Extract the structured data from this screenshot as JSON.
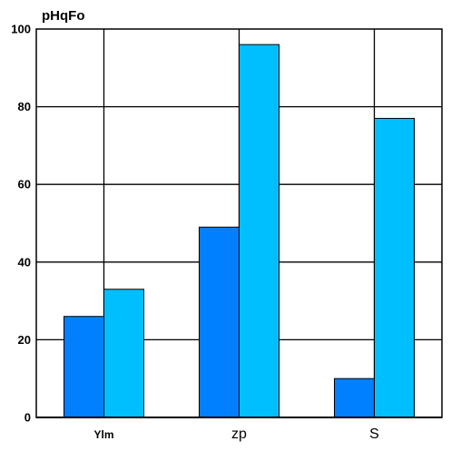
{
  "chart_data": {
    "type": "bar",
    "title": "pHqFo",
    "xlabel": "",
    "ylabel": "",
    "categories": [
      "Ylm",
      "zp",
      "S"
    ],
    "series": [
      {
        "values": [
          26,
          49,
          10
        ],
        "color": "#007fff"
      },
      {
        "values": [
          33,
          96,
          77
        ],
        "color": "#00bfff"
      }
    ],
    "ylim": [
      0,
      100
    ],
    "yticks": [
      0,
      20,
      40,
      60,
      80,
      100
    ],
    "grid": true,
    "legend": "none"
  }
}
